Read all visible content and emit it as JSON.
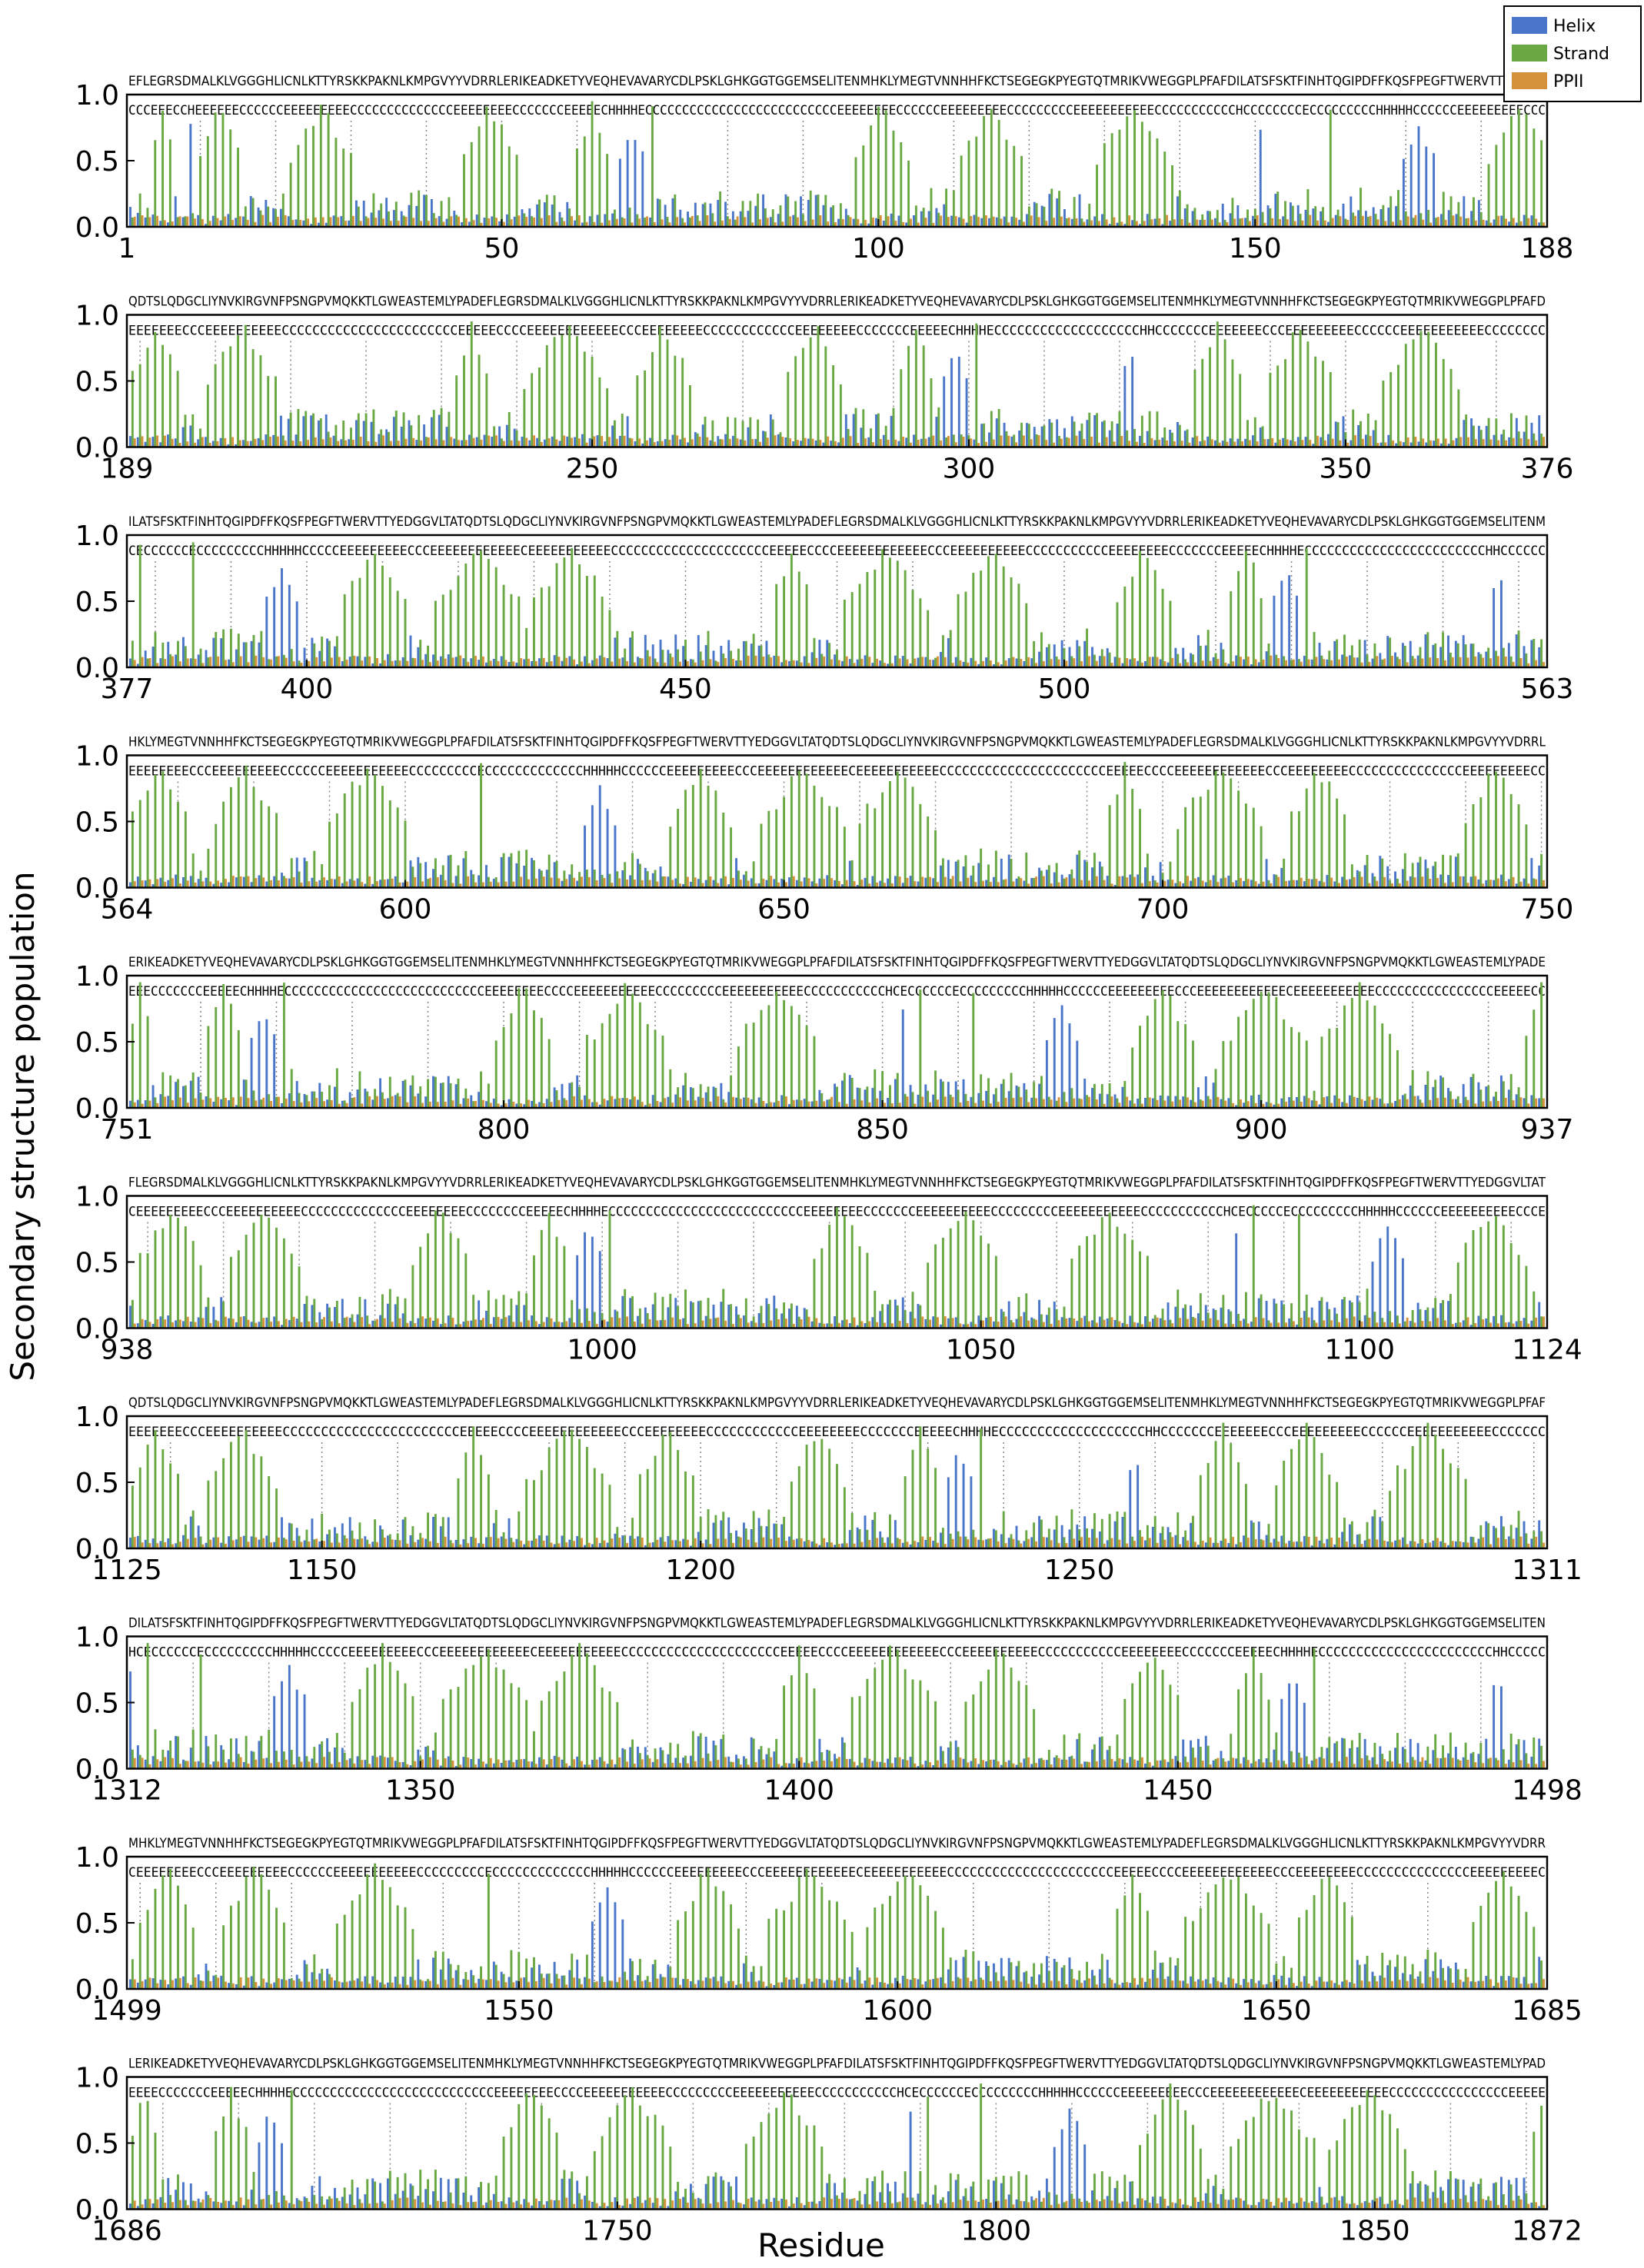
{
  "chart_data": {
    "type": "bar",
    "ylabel": "Secondary structure population",
    "xlabel": "Residue",
    "ylim": [
      0.0,
      1.0
    ],
    "yticks": [
      "0.0",
      "0.5",
      "1.0"
    ],
    "legend": {
      "placement": "top-right",
      "entries": [
        {
          "name": "Helix",
          "color": "#4a76c9"
        },
        {
          "name": "Strand",
          "color": "#69a843"
        },
        {
          "name": "PPII",
          "color": "#d4913a"
        }
      ]
    },
    "panels": [
      {
        "start": 1,
        "end": 188,
        "ticks": [
          1,
          50,
          100,
          150,
          188
        ],
        "sequence": "EFLEGRSDMALKLVGGGHLICNLKTTYRSKKPAKNLKMPGVYYVDRRLERIKEADKETYVEQHEVAVARYCDLPSKLGHKGGTGGEMSELITENMHKLYMEGTVNNHHFKCTSEGEGKPYEGTQTMRIKVWEGGPLPFAFDILATSFSKTFINHTQGIPDFFKQSFPEGFTWERVTTYEDGG",
        "ss": "CCCEEECCHEEEEEECCCCCCEEEEEEEEECCCCCCCCCCCCCCEEEEEEEECCCCCCCEEEEECHHHHECCCCCCCCCCCCCCCCCCCCCCCCCCEEEEEEEECCCCCCEEEEEEEEECCCCCCCCCEEEEEEEEEEECCCCCCCCCCCHCCCCCCCCECCCCCCCCCHHHHHCCCCCCEEEEEEEEECCC"
      },
      {
        "start": 189,
        "end": 376,
        "ticks": [
          189,
          250,
          300,
          350,
          376
        ],
        "sequence": "QDTSLQDGCLIYNVKIRGVNFPSNGPVMQKKTLGWEASTEMLYPADEFLEGRSDMALKLVGGGHLICNLKTTYRSKKPAKNLKMPGVYYVDRRLERIKEADKETYVEQHEVAVARYCDLPSKLGHKGGTGGEMSELITENMHKLYMEGTVNNHHFKCTSEGEGKPYEGTQTMRIKVWEGGPLPFAFD",
        "ss": "EEEEEEECCCEEEEEEEEEECCCCCCCCCCCCCCCCCCCCCCCEEEEECCCCEEEEEEEEEEEECCCEEEEEEEECCCCCCCCCCCCEEEEEEEECCCCCCCEEEEECHHHHECCCCCCCCCCCCCCCCCCCHHCCCCCCCEEEEEEECCCEEEEEEEEECCCCCCEEEEEEEEEEECCCCCCCC"
      },
      {
        "start": 377,
        "end": 563,
        "ticks": [
          377,
          400,
          450,
          500,
          563
        ],
        "sequence": "ILATSFSKTFINHTQGIPDFFKQSFPEGFTWERVTTYEDGGVLTATQDTSLQDGCLIYNVKIRGVNFPSNGPVMQKKTLGWEASTEMLYPADEFLEGRSDMALKLVGGGHLICNLKTTYRSKKPAKNLKMPGVYYVDRRLERIKEADKETYVEQHEVAVARYCDLPSKLGHKGGTGGEMSELITENM",
        "ss": "CECCCCCCECCCCCCCCCHHHHHCCCCCEEEEEEEEECCCEEEEEEEEEEEECEEEEEEEEEEECCCCCCCCCCCCCCCCCCCCCEEEEECCCCEEEEEEEEEEEECCCEEEEEEEEEECCCCCCCCCCCEEEEEEEECCCCCCCEEEEECHHHHECCCCCCCCCCCCCCCCCCCCCCCCHHCCCCCC"
      },
      {
        "start": 564,
        "end": 750,
        "ticks": [
          564,
          600,
          650,
          700,
          750
        ],
        "sequence": "HKLYMEGTVNNHHFKCTSEGEGKPYEGTQTMRIKVWEGGPLPFAFDILATSFSKTFINHTQGIPDFFKQSFPEGFTWERVTTYEDGGVLTATQDTSLQDGCLIYNVKIRGVNFPSNGPVMQKKTLGWEASTEMLYPADEFLEGRSDMALKLVGGGHLICNLKTTYRSKKPAKNLKMPGVYYVDRRL",
        "ss": "EEEEEEEECCCEEEEEEEEECCCCCCEEEEEEEEEEECCCCCCCCCECCCCCCCCCCCCCHHHHHCCCCCCEEEEEEEEECCCEEEEEEEEEEEECEEEEEEEEEEECCCCCCCCCCCCCCCCCCCCCCEEEEECCCCEEEEEEEEEEEECCCEEEEEEEECCCCCCCCCCCCCCCEEEEEEEEECC"
      },
      {
        "start": 751,
        "end": 937,
        "ticks": [
          751,
          800,
          850,
          900,
          937
        ],
        "sequence": "ERIKEADKETYVEQHEVAVARYCDLPSKLGHKGGTGGEMSELITENMHKLYMEGTVNNHHFKCTSEGEGKPYEGTQTMRIKVWEGGPLPFAFDILATSFSKTFINHTQGIPDFFKQSFPEGFTWERVTTYEDGGVLTATQDTSLQDGCLIYNVKIRGVNFPSNGPVMQKKTLGWEASTEMLYPADE",
        "ss": "EEECCCCCCCEEEEECHHHHECCCCCCCCCCCCCCCCCCCCCCCCCCCEEEEEEEECCCCEEEEEEEEEEECCCCCCCCCEEEEEEEEEEECCCCCCCCCCCHCECCCCCCECCCCCCCCCHHHHHCCCCCCEEEEEEEEECCCEEEEEEEEEEEECEEEEEEEEEEECCCCCCCCCCCCCCCCEEEEECC"
      },
      {
        "start": 938,
        "end": 1124,
        "ticks": [
          938,
          1000,
          1050,
          1100,
          1124
        ],
        "sequence": "FLEGRSDMALKLVGGGHLICNLKTTYRSKKPAKNLKMPGVYYVDRRLERIKEADKETYVEQHEVAVARYCDLPSKLGHKGGTGGEMSELITENMHKLYMEGTVNNHHFKCTSEGEGKPYEGTQTMRIKVWEGGPLPFAFDILATSFSKTFINHTQGIPDFFKQSFPEGFTWERVTTYEDGGVLTAT",
        "ss": "CEEEEEEEEECCCEEEEEEEEEECCCCCCCCCCCCCCEEEEEEEECCCCCCCCEEEEECHHHHECCCCCCCCCCCCCCCCCCCCCCCCCCEEEEEEEECCCCCCCEEEEEEEEEECCCCCCCCCEEEEEEEEEEECCCCCCCCCCCHCECCCCCECCCCCCCCCHHHHHCCCCCCEEEEEEEEEECCCE"
      },
      {
        "start": 1125,
        "end": 1311,
        "ticks": [
          1125,
          1150,
          1200,
          1250,
          1311
        ],
        "sequence": "QDTSLQDGCLIYNVKIRGVNFPSNGPVMQKKTLGWEASTEMLYPADEFLEGRSDMALKLVGGGHLICNLKTTYRSKKPAKNLKMPGVYYVDRRLERIKEADKETYVEQHEVAVARYCDLPSKLGHKGGTGGEMSELITENMHKLYMEGTVNNHHFKCTSEGEGKPYEGTQTMRIKVWEGGPLPFAF",
        "ss": "EEEEEEECCCEEEEEEEEEECCCCCCCCCCCCCCCCCCCCCCCEEEEECCCCEEEEEEEEEEEECCCEEEEEEEECCCCCCCCCCCCEEEEEEEECCCCCCCEEEEECHHHHECCCCCCCCCCCCCCCCCCCHHCCCCCCCEEEEEEECCCEEEEEEEEECCCCCCEEEEEEEEEEECCCCCCC"
      },
      {
        "start": 1312,
        "end": 1498,
        "ticks": [
          1312,
          1350,
          1400,
          1450,
          1498
        ],
        "sequence": "DILATSFSKTFINHTQGIPDFFKQSFPEGFTWERVTTYEDGGVLTATQDTSLQDGCLIYNVKIRGVNFPSNGPVMQKKTLGWEASTEMLYPADEFLEGRSDMALKLVGGGHLICNLKTTYRSKKPAKNLKMPGVYYVDRRLERIKEADKETYVEQHEVAVARYCDLPSKLGHKGGTGGEMSELITEN",
        "ss": "HCECCCCCCECCCCCCCCCHHHHHCCCCCEEEEEEEEECCCEEEEEEEEEEEECEEEEEEEEEEECCCCCCCCCCCCCCCCCCCCCEEEEECCCCEEEEEEEEEEEECCCEEEEEEEEEECCCCCCCCCCCEEEEEEEECCCCCCCEEEEECHHHHECCCCCCCCCCCCCCCCCCCCCCCHHCCCCC"
      },
      {
        "start": 1499,
        "end": 1685,
        "ticks": [
          1499,
          1550,
          1600,
          1650,
          1685
        ],
        "sequence": "MHKLYMEGTVNNHHFKCTSEGEGKPYEGTQTMRIKVWEGGPLPFAFDILATSFSKTFINHTQGIPDFFKQSFPEGFTWERVTTYEDGGVLTATQDTSLQDGCLIYNVKIRGVNFPSNGPVMQKKTLGWEASTEMLYPADEFLEGRSDMALKLVGGGHLICNLKTTYRSKKPAKNLKMPGVYYVDRR",
        "ss": "CEEEEEEEECCCEEEEEEEEECCCCCCEEEEEEEEEEECCCCCCCCCECCCCCCCCCCCCCHHHHHCCCCCCEEEEEEEEECCCEEEEEEEEEEEECEEEEEEEEEEECCCCCCCCCCCCCCCCCCCCCCEEEEECCCCEEEEEEEEEEEECCCEEEEEEEECCCCCCCCCCCCCCCEEEEEEEEEC"
      },
      {
        "start": 1686,
        "end": 1872,
        "ticks": [
          1686,
          1750,
          1800,
          1850,
          1872
        ],
        "sequence": "LERIKEADKETYVEQHEVAVARYCDLPSKLGHKGGTGGEMSELITENMHKLYMEGTVNNHHFKCTSEGEGKPYEGTQTMRIKVWEGGPLPFAFDILATSFSKTFINHTQGIPDFFKQSFPEGFTWERVTTYEDGGVLTATQDTSLQDGCLIYNVKIRGVNFPSNGPVMQKKTLGWEASTEMLYPAD",
        "ss": "EEEECCCCCCCEEEEECHHHHECCCCCCCCCCCCCCCCCCCCCCCCCCCEEEEEEEECCCCEEEEEEEEEEECCCCCCCCCEEEEEEEEEEECCCCCCCCCCCHCECCCCCCECCCCCCCCCHHHHHCCCCCCEEEEEEEEECCCEEEEEEEEEEEECEEEEEEEEEEECCCCCCCCCCCCCCCCEEEEE"
      }
    ]
  }
}
